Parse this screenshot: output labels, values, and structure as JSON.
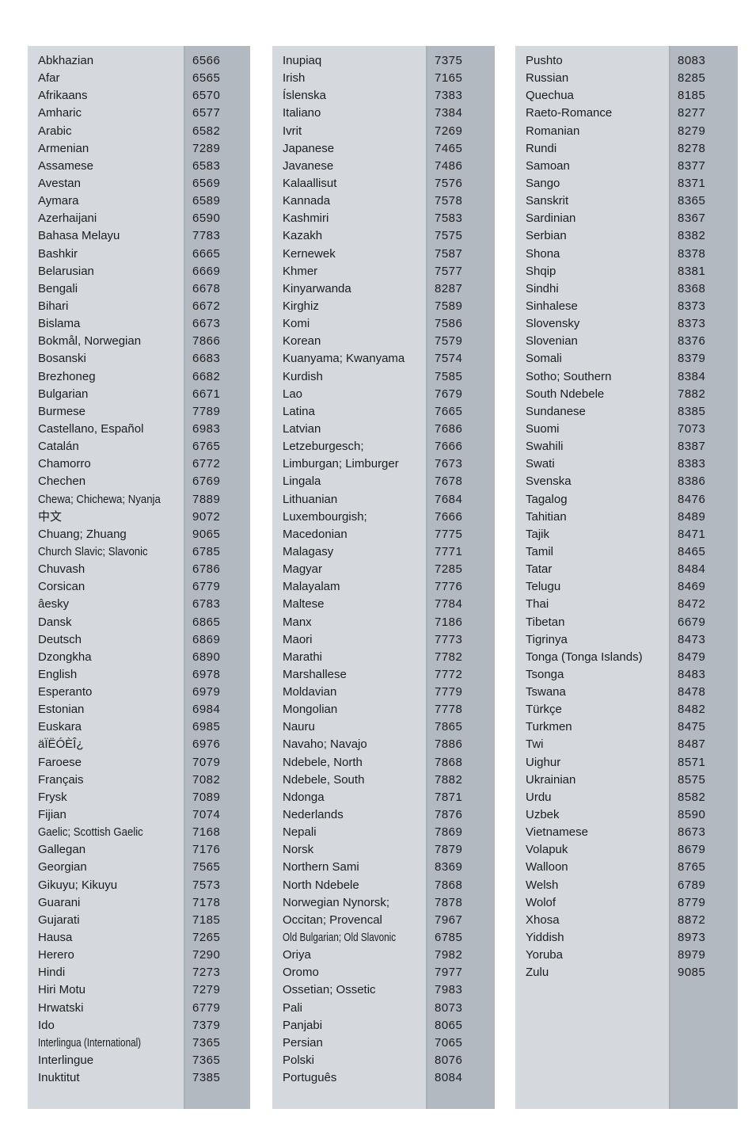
{
  "table": {
    "columns": [
      {
        "rows": [
          {
            "name": "Abkhazian",
            "code": "6566"
          },
          {
            "name": "Afar",
            "code": "6565"
          },
          {
            "name": "Afrikaans",
            "code": "6570"
          },
          {
            "name": "Amharic",
            "code": "6577"
          },
          {
            "name": "Arabic",
            "code": "6582"
          },
          {
            "name": "Armenian",
            "code": "7289"
          },
          {
            "name": "Assamese",
            "code": "6583"
          },
          {
            "name": "Avestan",
            "code": "6569"
          },
          {
            "name": "Aymara",
            "code": "6589"
          },
          {
            "name": "Azerhaijani",
            "code": "6590"
          },
          {
            "name": "Bahasa Melayu",
            "code": "7783"
          },
          {
            "name": "Bashkir",
            "code": "6665"
          },
          {
            "name": "Belarusian",
            "code": "6669"
          },
          {
            "name": "Bengali",
            "code": "6678"
          },
          {
            "name": "Bihari",
            "code": "6672"
          },
          {
            "name": "Bislama",
            "code": "6673"
          },
          {
            "name": "Bokmål, Norwegian",
            "code": "7866"
          },
          {
            "name": "Bosanski",
            "code": "6683"
          },
          {
            "name": "Brezhoneg",
            "code": "6682"
          },
          {
            "name": "Bulgarian",
            "code": "6671"
          },
          {
            "name": "Burmese",
            "code": "7789"
          },
          {
            "name": "Castellano, Español",
            "code": "6983"
          },
          {
            "name": "Catalán",
            "code": "6765"
          },
          {
            "name": "Chamorro",
            "code": "6772"
          },
          {
            "name": "Chechen",
            "code": "6769"
          },
          {
            "name": "Chewa; Chichewa; Nyanja",
            "code": "7889"
          },
          {
            "name": "中文",
            "code": "9072"
          },
          {
            "name": "Chuang; Zhuang",
            "code": "9065"
          },
          {
            "name": "Church Slavic; Slavonic",
            "code": "6785"
          },
          {
            "name": "Chuvash",
            "code": "6786"
          },
          {
            "name": "Corsican",
            "code": "6779"
          },
          {
            "name": "âesky",
            "code": "6783"
          },
          {
            "name": "Dansk",
            "code": "6865"
          },
          {
            "name": "Deutsch",
            "code": "6869"
          },
          {
            "name": "Dzongkha",
            "code": "6890"
          },
          {
            "name": "English",
            "code": "6978"
          },
          {
            "name": "Esperanto",
            "code": "6979"
          },
          {
            "name": "Estonian",
            "code": "6984"
          },
          {
            "name": "Euskara",
            "code": "6985"
          },
          {
            "name": "äÏËÓÈÎ¿",
            "code": "6976"
          },
          {
            "name": "Faroese",
            "code": "7079"
          },
          {
            "name": "Français",
            "code": "7082"
          },
          {
            "name": "Frysk",
            "code": "7089"
          },
          {
            "name": "Fijian",
            "code": "7074"
          },
          {
            "name": "Gaelic; Scottish Gaelic",
            "code": "7168"
          },
          {
            "name": "Gallegan",
            "code": "7176"
          },
          {
            "name": "Georgian",
            "code": "7565"
          },
          {
            "name": "Gikuyu; Kikuyu",
            "code": "7573"
          },
          {
            "name": "Guarani",
            "code": "7178"
          },
          {
            "name": "Gujarati",
            "code": "7185"
          },
          {
            "name": "Hausa",
            "code": "7265"
          },
          {
            "name": "Herero",
            "code": "7290"
          },
          {
            "name": "Hindi",
            "code": "7273"
          },
          {
            "name": "Hiri Motu",
            "code": "7279"
          },
          {
            "name": "Hrwatski",
            "code": "6779"
          },
          {
            "name": "Ido",
            "code": "7379"
          },
          {
            "name": "Interlingua (International)",
            "code": "7365"
          },
          {
            "name": "Interlingue",
            "code": "7365"
          },
          {
            "name": "Inuktitut",
            "code": "7385"
          }
        ]
      },
      {
        "rows": [
          {
            "name": "Inupiaq",
            "code": "7375"
          },
          {
            "name": "Irish",
            "code": "7165"
          },
          {
            "name": "Íslenska",
            "code": "7383"
          },
          {
            "name": "Italiano",
            "code": "7384"
          },
          {
            "name": "Ivrit",
            "code": "7269"
          },
          {
            "name": "Japanese",
            "code": "7465"
          },
          {
            "name": "Javanese",
            "code": "7486"
          },
          {
            "name": "Kalaallisut",
            "code": "7576"
          },
          {
            "name": "Kannada",
            "code": "7578"
          },
          {
            "name": "Kashmiri",
            "code": "7583"
          },
          {
            "name": "Kazakh",
            "code": "7575"
          },
          {
            "name": "Kernewek",
            "code": "7587"
          },
          {
            "name": "Khmer",
            "code": "7577"
          },
          {
            "name": "Kinyarwanda",
            "code": "8287"
          },
          {
            "name": "Kirghiz",
            "code": "7589"
          },
          {
            "name": "Komi",
            "code": "7586"
          },
          {
            "name": "Korean",
            "code": "7579"
          },
          {
            "name": "Kuanyama; Kwanyama",
            "code": "7574"
          },
          {
            "name": "Kurdish",
            "code": "7585"
          },
          {
            "name": "Lao",
            "code": "7679"
          },
          {
            "name": "Latina",
            "code": "7665"
          },
          {
            "name": "Latvian",
            "code": "7686"
          },
          {
            "name": "Letzeburgesch;",
            "code": "7666"
          },
          {
            "name": "Limburgan; Limburger",
            "code": "7673"
          },
          {
            "name": "Lingala",
            "code": "7678"
          },
          {
            "name": "Lithuanian",
            "code": "7684"
          },
          {
            "name": "Luxembourgish;",
            "code": "7666"
          },
          {
            "name": "Macedonian",
            "code": "7775"
          },
          {
            "name": "Malagasy",
            "code": "7771"
          },
          {
            "name": "Magyar",
            "code": "7285"
          },
          {
            "name": "Malayalam",
            "code": "7776"
          },
          {
            "name": "Maltese",
            "code": "7784"
          },
          {
            "name": "Manx",
            "code": "7186"
          },
          {
            "name": "Maori",
            "code": "7773"
          },
          {
            "name": "Marathi",
            "code": "7782"
          },
          {
            "name": "Marshallese",
            "code": "7772"
          },
          {
            "name": "Moldavian",
            "code": "7779"
          },
          {
            "name": "Mongolian",
            "code": "7778"
          },
          {
            "name": "Nauru",
            "code": "7865"
          },
          {
            "name": "Navaho; Navajo",
            "code": "7886"
          },
          {
            "name": "Ndebele, North",
            "code": "7868"
          },
          {
            "name": "Ndebele, South",
            "code": "7882"
          },
          {
            "name": "Ndonga",
            "code": "7871"
          },
          {
            "name": "Nederlands",
            "code": "7876"
          },
          {
            "name": "Nepali",
            "code": "7869"
          },
          {
            "name": "Norsk",
            "code": "7879"
          },
          {
            "name": "Northern Sami",
            "code": "8369"
          },
          {
            "name": "North Ndebele",
            "code": "7868"
          },
          {
            "name": "Norwegian Nynorsk;",
            "code": "7878"
          },
          {
            "name": "Occitan; Provencal",
            "code": "7967"
          },
          {
            "name": "Old Bulgarian; Old Slavonic",
            "code": "6785"
          },
          {
            "name": "Oriya",
            "code": "7982"
          },
          {
            "name": "Oromo",
            "code": "7977"
          },
          {
            "name": "Ossetian; Ossetic",
            "code": "7983"
          },
          {
            "name": "Pali",
            "code": "8073"
          },
          {
            "name": "Panjabi",
            "code": "8065"
          },
          {
            "name": "Persian",
            "code": "7065"
          },
          {
            "name": "Polski",
            "code": "8076"
          },
          {
            "name": "Português",
            "code": "8084"
          }
        ]
      },
      {
        "rows": [
          {
            "name": "Pushto",
            "code": "8083"
          },
          {
            "name": "Russian",
            "code": "8285"
          },
          {
            "name": "Quechua",
            "code": "8185"
          },
          {
            "name": "Raeto-Romance",
            "code": "8277"
          },
          {
            "name": "Romanian",
            "code": "8279"
          },
          {
            "name": "Rundi",
            "code": "8278"
          },
          {
            "name": "Samoan",
            "code": "8377"
          },
          {
            "name": "Sango",
            "code": "8371"
          },
          {
            "name": "Sanskrit",
            "code": "8365"
          },
          {
            "name": "Sardinian",
            "code": "8367"
          },
          {
            "name": "Serbian",
            "code": "8382"
          },
          {
            "name": "Shona",
            "code": "8378"
          },
          {
            "name": "Shqip",
            "code": "8381"
          },
          {
            "name": "Sindhi",
            "code": "8368"
          },
          {
            "name": "Sinhalese",
            "code": "8373"
          },
          {
            "name": "Slovensky",
            "code": "8373"
          },
          {
            "name": "Slovenian",
            "code": "8376"
          },
          {
            "name": "Somali",
            "code": "8379"
          },
          {
            "name": "Sotho; Southern",
            "code": "8384"
          },
          {
            "name": "South Ndebele",
            "code": "7882"
          },
          {
            "name": "Sundanese",
            "code": "8385"
          },
          {
            "name": "Suomi",
            "code": "7073"
          },
          {
            "name": "Swahili",
            "code": "8387"
          },
          {
            "name": "Swati",
            "code": "8383"
          },
          {
            "name": "Svenska",
            "code": "8386"
          },
          {
            "name": "Tagalog",
            "code": "8476"
          },
          {
            "name": "Tahitian",
            "code": "8489"
          },
          {
            "name": "Tajik",
            "code": "8471"
          },
          {
            "name": "Tamil",
            "code": "8465"
          },
          {
            "name": "Tatar",
            "code": "8484"
          },
          {
            "name": "Telugu",
            "code": "8469"
          },
          {
            "name": "Thai",
            "code": "8472"
          },
          {
            "name": "Tibetan",
            "code": "6679"
          },
          {
            "name": "Tigrinya",
            "code": "8473"
          },
          {
            "name": "Tonga (Tonga Islands)",
            "code": "8479"
          },
          {
            "name": "Tsonga",
            "code": "8483"
          },
          {
            "name": "Tswana",
            "code": "8478"
          },
          {
            "name": "Türkçe",
            "code": "8482"
          },
          {
            "name": "Turkmen",
            "code": "8475"
          },
          {
            "name": "Twi",
            "code": "8487"
          },
          {
            "name": "Uighur",
            "code": "8571"
          },
          {
            "name": "Ukrainian",
            "code": "8575"
          },
          {
            "name": "Urdu",
            "code": "8582"
          },
          {
            "name": "Uzbek",
            "code": "8590"
          },
          {
            "name": "Vietnamese",
            "code": "8673"
          },
          {
            "name": "Volapuk",
            "code": "8679"
          },
          {
            "name": "Walloon",
            "code": "8765"
          },
          {
            "name": "Welsh",
            "code": "6789"
          },
          {
            "name": "Wolof",
            "code": "8779"
          },
          {
            "name": "Xhosa",
            "code": "8872"
          },
          {
            "name": "Yiddish",
            "code": "8973"
          },
          {
            "name": "Yoruba",
            "code": "8979"
          },
          {
            "name": "Zulu",
            "code": "9085"
          }
        ]
      }
    ],
    "colors": {
      "column_background": "#d5d8dc",
      "code_strip_background": "#b3b9c0",
      "seam": "#a9afb7",
      "text": "#1d1d1f",
      "page_background": "#ffffff"
    }
  }
}
